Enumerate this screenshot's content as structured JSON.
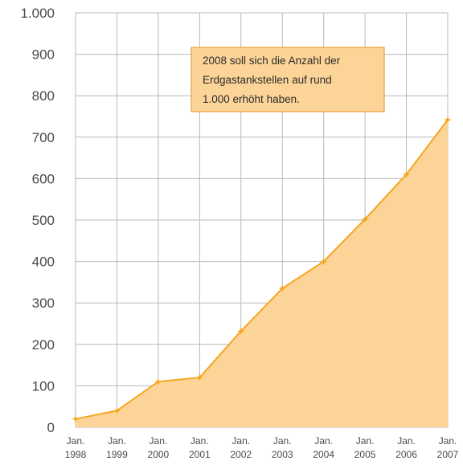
{
  "colors": {
    "area_fill": "#fcd497",
    "line": "#f5a623",
    "grid": "#b9b9b9",
    "annotation_fill": "#fcd497",
    "annotation_border": "#e8a040",
    "text": "#4a4a4a"
  },
  "chart_data": {
    "type": "area",
    "x": [
      "1998",
      "1999",
      "2000",
      "2001",
      "2002",
      "2003",
      "2004",
      "2005",
      "2006",
      "2007"
    ],
    "x_tick_labels": [
      [
        "Jan.",
        "1998"
      ],
      [
        "Jan.",
        "1999"
      ],
      [
        "Jan.",
        "2000"
      ],
      [
        "Jan.",
        "2001"
      ],
      [
        "Jan.",
        "2002"
      ],
      [
        "Jan.",
        "2003"
      ],
      [
        "Jan.",
        "2004"
      ],
      [
        "Jan.",
        "2005"
      ],
      [
        "Jan.",
        "2006"
      ],
      [
        "Jan.",
        "2007"
      ]
    ],
    "values": [
      20,
      40,
      110,
      120,
      232,
      335,
      400,
      502,
      610,
      742
    ],
    "ylim": [
      0,
      1000
    ],
    "y_ticks": [
      0,
      100,
      200,
      300,
      400,
      500,
      600,
      700,
      800,
      900,
      1000
    ],
    "y_tick_labels": [
      "0",
      "100",
      "200",
      "300",
      "400",
      "500",
      "600",
      "700",
      "800",
      "900",
      "1.000"
    ],
    "grid": true,
    "annotation": {
      "lines": [
        "2008 soll sich die Anzahl der",
        "Erdgastankstellen auf rund",
        "1.000 erhöht haben."
      ]
    }
  }
}
